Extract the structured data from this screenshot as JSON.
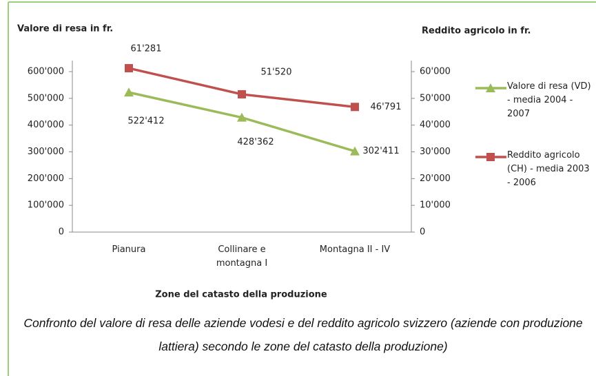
{
  "chart_data": {
    "type": "line",
    "y_label": "Valore di resa in fr.",
    "y2_label": "Reddito agricolo  in fr.",
    "x_label": "Zone del catasto della produzione",
    "caption": "Confronto del valore di resa delle aziende vodesi e del reddito agricolo svizzero (aziende con produzione lattiera) secondo le zone del catasto della produzione)",
    "categories": [
      "Pianura",
      "Collinare e montagna I",
      "Montagna II - IV"
    ],
    "series": [
      {
        "name": "Valore di resa (VD) - media 2004 - 2007",
        "color": "#9bbb59",
        "marker": "triangle",
        "values": [
          522412,
          428362,
          302411
        ],
        "value_labels": [
          "522'412",
          "428'362",
          "302'411"
        ]
      },
      {
        "name": "Reddito agricolo (CH) - media 2003 - 2006",
        "color": "#c0504d",
        "marker": "square",
        "axis": "y2",
        "values": [
          61281,
          51520,
          46791
        ],
        "value_labels": [
          "61'281",
          "51'520",
          "46'791"
        ]
      }
    ],
    "ylim": [
      0,
      600000
    ],
    "yticks": [
      0,
      {
        "value": 100000,
        "label": "100'000"
      },
      {
        "value": 200000,
        "label": "200'000"
      },
      {
        "value": 300000,
        "label": "300'000"
      },
      {
        "value": 400000,
        "label": "400'000"
      },
      {
        "value": 500000,
        "label": "500'000"
      },
      {
        "value": 600000,
        "label": "600'000"
      }
    ],
    "y2lim": [
      0,
      60000
    ],
    "y2ticks": [
      0,
      {
        "value": 10000,
        "label": "10'000"
      },
      {
        "value": 20000,
        "label": "20'000"
      },
      {
        "value": 30000,
        "label": "30'000"
      },
      {
        "value": 40000,
        "label": "40'000"
      },
      {
        "value": 50000,
        "label": "50'000"
      },
      {
        "value": 60000,
        "label": "60'000"
      }
    ],
    "legend": "right"
  }
}
